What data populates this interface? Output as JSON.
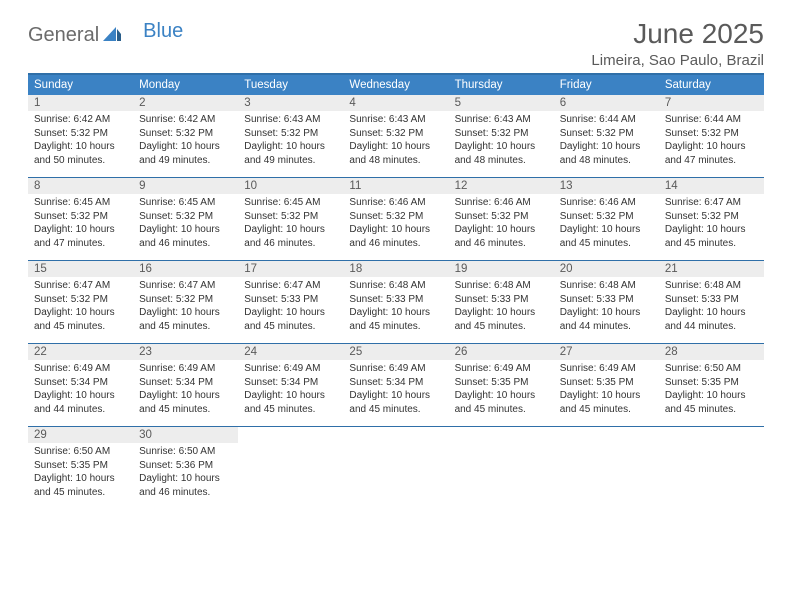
{
  "logo": {
    "part1": "General",
    "part2": "Blue"
  },
  "title": "June 2025",
  "location": "Limeira, Sao Paulo, Brazil",
  "colors": {
    "header_bg": "#3b82c4",
    "border": "#2f6fa8",
    "daynum_bg": "#ededed",
    "text": "#333333",
    "muted": "#5a5a5a",
    "white": "#ffffff"
  },
  "typography": {
    "title_fontsize": 28,
    "location_fontsize": 15,
    "weekday_fontsize": 11.5,
    "body_fontsize": 10
  },
  "layout": {
    "cols": 7,
    "rows": 5,
    "cell_min_height": 82
  },
  "weekdays": [
    "Sunday",
    "Monday",
    "Tuesday",
    "Wednesday",
    "Thursday",
    "Friday",
    "Saturday"
  ],
  "days": [
    {
      "n": 1,
      "sunrise": "6:42 AM",
      "sunset": "5:32 PM",
      "daylight": "10 hours and 50 minutes."
    },
    {
      "n": 2,
      "sunrise": "6:42 AM",
      "sunset": "5:32 PM",
      "daylight": "10 hours and 49 minutes."
    },
    {
      "n": 3,
      "sunrise": "6:43 AM",
      "sunset": "5:32 PM",
      "daylight": "10 hours and 49 minutes."
    },
    {
      "n": 4,
      "sunrise": "6:43 AM",
      "sunset": "5:32 PM",
      "daylight": "10 hours and 48 minutes."
    },
    {
      "n": 5,
      "sunrise": "6:43 AM",
      "sunset": "5:32 PM",
      "daylight": "10 hours and 48 minutes."
    },
    {
      "n": 6,
      "sunrise": "6:44 AM",
      "sunset": "5:32 PM",
      "daylight": "10 hours and 48 minutes."
    },
    {
      "n": 7,
      "sunrise": "6:44 AM",
      "sunset": "5:32 PM",
      "daylight": "10 hours and 47 minutes."
    },
    {
      "n": 8,
      "sunrise": "6:45 AM",
      "sunset": "5:32 PM",
      "daylight": "10 hours and 47 minutes."
    },
    {
      "n": 9,
      "sunrise": "6:45 AM",
      "sunset": "5:32 PM",
      "daylight": "10 hours and 46 minutes."
    },
    {
      "n": 10,
      "sunrise": "6:45 AM",
      "sunset": "5:32 PM",
      "daylight": "10 hours and 46 minutes."
    },
    {
      "n": 11,
      "sunrise": "6:46 AM",
      "sunset": "5:32 PM",
      "daylight": "10 hours and 46 minutes."
    },
    {
      "n": 12,
      "sunrise": "6:46 AM",
      "sunset": "5:32 PM",
      "daylight": "10 hours and 46 minutes."
    },
    {
      "n": 13,
      "sunrise": "6:46 AM",
      "sunset": "5:32 PM",
      "daylight": "10 hours and 45 minutes."
    },
    {
      "n": 14,
      "sunrise": "6:47 AM",
      "sunset": "5:32 PM",
      "daylight": "10 hours and 45 minutes."
    },
    {
      "n": 15,
      "sunrise": "6:47 AM",
      "sunset": "5:32 PM",
      "daylight": "10 hours and 45 minutes."
    },
    {
      "n": 16,
      "sunrise": "6:47 AM",
      "sunset": "5:32 PM",
      "daylight": "10 hours and 45 minutes."
    },
    {
      "n": 17,
      "sunrise": "6:47 AM",
      "sunset": "5:33 PM",
      "daylight": "10 hours and 45 minutes."
    },
    {
      "n": 18,
      "sunrise": "6:48 AM",
      "sunset": "5:33 PM",
      "daylight": "10 hours and 45 minutes."
    },
    {
      "n": 19,
      "sunrise": "6:48 AM",
      "sunset": "5:33 PM",
      "daylight": "10 hours and 45 minutes."
    },
    {
      "n": 20,
      "sunrise": "6:48 AM",
      "sunset": "5:33 PM",
      "daylight": "10 hours and 44 minutes."
    },
    {
      "n": 21,
      "sunrise": "6:48 AM",
      "sunset": "5:33 PM",
      "daylight": "10 hours and 44 minutes."
    },
    {
      "n": 22,
      "sunrise": "6:49 AM",
      "sunset": "5:34 PM",
      "daylight": "10 hours and 44 minutes."
    },
    {
      "n": 23,
      "sunrise": "6:49 AM",
      "sunset": "5:34 PM",
      "daylight": "10 hours and 45 minutes."
    },
    {
      "n": 24,
      "sunrise": "6:49 AM",
      "sunset": "5:34 PM",
      "daylight": "10 hours and 45 minutes."
    },
    {
      "n": 25,
      "sunrise": "6:49 AM",
      "sunset": "5:34 PM",
      "daylight": "10 hours and 45 minutes."
    },
    {
      "n": 26,
      "sunrise": "6:49 AM",
      "sunset": "5:35 PM",
      "daylight": "10 hours and 45 minutes."
    },
    {
      "n": 27,
      "sunrise": "6:49 AM",
      "sunset": "5:35 PM",
      "daylight": "10 hours and 45 minutes."
    },
    {
      "n": 28,
      "sunrise": "6:50 AM",
      "sunset": "5:35 PM",
      "daylight": "10 hours and 45 minutes."
    },
    {
      "n": 29,
      "sunrise": "6:50 AM",
      "sunset": "5:35 PM",
      "daylight": "10 hours and 45 minutes."
    },
    {
      "n": 30,
      "sunrise": "6:50 AM",
      "sunset": "5:36 PM",
      "daylight": "10 hours and 46 minutes."
    }
  ],
  "labels": {
    "sunrise": "Sunrise:",
    "sunset": "Sunset:",
    "daylight": "Daylight:"
  },
  "start_weekday": 0,
  "trailing_empty": 5
}
